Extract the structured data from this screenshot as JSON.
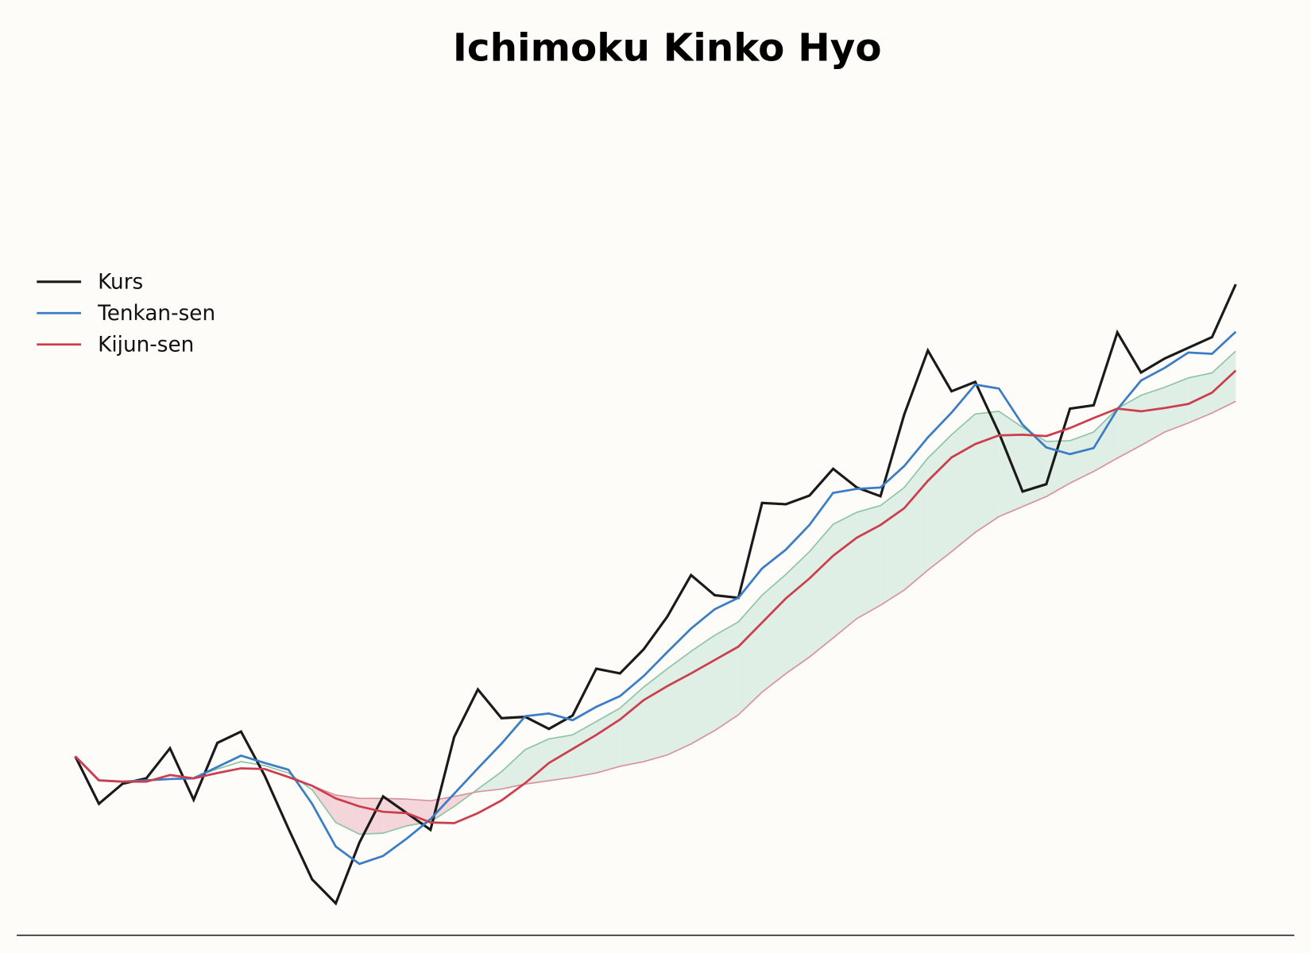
{
  "chart_data": {
    "type": "line",
    "title": "Ichimoku Kinko Hyo",
    "ylim": [
      0,
      120
    ],
    "legend": "upper left",
    "series": [
      {
        "name": "Kurs",
        "color": "#1a1a1a",
        "width": 3,
        "values": [
          26.9,
          19.8,
          22.8,
          23.6,
          28.1,
          20.4,
          28.9,
          30.6,
          24,
          16.1,
          8.5,
          4.9,
          14,
          20.9,
          18.4,
          15.9,
          29.8,
          36.9,
          32.6,
          32.8,
          31,
          33,
          40,
          39.3,
          42.9,
          47.8,
          54,
          51,
          50.6,
          64.8,
          64.6,
          65.9,
          69.9,
          67.1,
          65.8,
          78,
          87.6,
          81.5,
          82.9,
          75.3,
          66.5,
          67.6,
          78.9,
          79.4,
          90.3,
          84.3,
          86.4,
          88,
          89.6,
          97.5
        ]
      },
      {
        "name": "Tenkan-sen",
        "color": "#3b7dc4",
        "width": 2.6,
        "values": [
          26.9,
          23.3,
          23.1,
          23.3,
          23.5,
          23.6,
          25.3,
          27,
          25.9,
          24.9,
          19.8,
          13.4,
          10.8,
          12,
          14.6,
          17.5,
          21.3,
          25.1,
          28.8,
          32.9,
          33.3,
          32.3,
          34.3,
          35.9,
          38.9,
          42.5,
          46,
          48.9,
          50.6,
          55,
          57.8,
          61.5,
          66.3,
          66.9,
          67.1,
          70.3,
          74.6,
          78.3,
          82.5,
          81.9,
          76.5,
          73.1,
          72.1,
          73,
          78.8,
          83.1,
          85,
          87.3,
          87.1,
          90.4
        ]
      },
      {
        "name": "Kijun-sen",
        "color": "#cc3d4e",
        "width": 2.6,
        "values": [
          26.9,
          23.3,
          23.1,
          23.1,
          24.1,
          23.6,
          24.4,
          25.1,
          25,
          23.8,
          22.5,
          20.6,
          19.4,
          18.6,
          18.4,
          17,
          16.9,
          18.4,
          20.3,
          22.9,
          25.9,
          28,
          30.1,
          32.4,
          35.3,
          37.4,
          39.3,
          41.3,
          43.3,
          46.9,
          50.5,
          53.5,
          56.9,
          59.6,
          61.5,
          64,
          68.1,
          71.6,
          73.6,
          74.9,
          75,
          74.8,
          76,
          77.5,
          78.9,
          78.5,
          79,
          79.6,
          81.3,
          84.6
        ]
      }
    ],
    "span_a": {
      "color": "#8fc4a6",
      "values": [
        null,
        null,
        null,
        null,
        null,
        23.75,
        25,
        26.1,
        25.5,
        24.4,
        21.9,
        17,
        15.25,
        15.4,
        16.5,
        17.1,
        19.4,
        22,
        24.6,
        27.9,
        29.5,
        30.1,
        32.1,
        34.1,
        37.25,
        40,
        42.6,
        45,
        47,
        51,
        54.1,
        57.5,
        61.6,
        63.4,
        64.4,
        67.1,
        71.5,
        75,
        78.1,
        78.5,
        76.1,
        74,
        74.1,
        75.4,
        78.9,
        80.9,
        82.1,
        83.5,
        84.25,
        87.5
      ]
    },
    "span_b": {
      "color": "#d9929a",
      "values": [
        null,
        null,
        null,
        null,
        null,
        null,
        null,
        null,
        null,
        null,
        22.5,
        21.1,
        20.6,
        20.6,
        20.5,
        20.25,
        20.9,
        21.6,
        22,
        22.75,
        23.25,
        23.75,
        24.4,
        25.4,
        26.1,
        27.1,
        28.75,
        30.75,
        33.1,
        36.5,
        39.25,
        41.75,
        44.6,
        47.5,
        49.5,
        51.75,
        54.75,
        57.5,
        60.4,
        62.75,
        64.25,
        65.75,
        67.75,
        69.5,
        71.5,
        73.4,
        75.4,
        76.75,
        78.25,
        80
      ]
    },
    "cloud_colors": {
      "up": "#dcede2",
      "down": "#f3d2d6"
    }
  }
}
